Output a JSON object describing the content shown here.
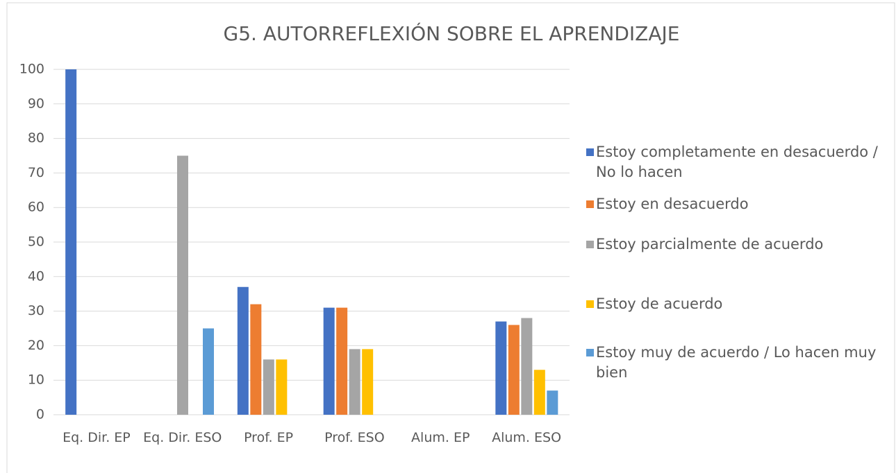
{
  "chart_data": {
    "type": "bar",
    "title": "G5. AUTORREFLEXIÓN SOBRE EL APRENDIZAJE",
    "categories": [
      "Eq. Dir. EP",
      "Eq. Dir. ESO",
      "Prof. EP",
      "Prof. ESO",
      "Alum. EP",
      "Alum. ESO"
    ],
    "series": [
      {
        "name": "Estoy completamente en desacuerdo / No lo hacen",
        "color": "#4472c4",
        "values": [
          100,
          0,
          37,
          31,
          0,
          27
        ]
      },
      {
        "name": "Estoy en desacuerdo",
        "color": "#ed7d31",
        "values": [
          0,
          0,
          32,
          31,
          0,
          26
        ]
      },
      {
        "name": "Estoy parcialmente de acuerdo",
        "color": "#a5a5a5",
        "values": [
          0,
          75,
          16,
          19,
          0,
          28
        ]
      },
      {
        "name": "Estoy de acuerdo",
        "color": "#ffc000",
        "values": [
          0,
          0,
          16,
          19,
          0,
          13
        ]
      },
      {
        "name": "Estoy muy de acuerdo / Lo hacen muy bien",
        "color": "#5b9bd5",
        "values": [
          0,
          25,
          0,
          0,
          0,
          7
        ]
      }
    ],
    "ylim": [
      0,
      100
    ],
    "yticks": [
      0,
      10,
      20,
      30,
      40,
      50,
      60,
      70,
      80,
      90,
      100
    ],
    "grid": true,
    "legend": "right"
  }
}
